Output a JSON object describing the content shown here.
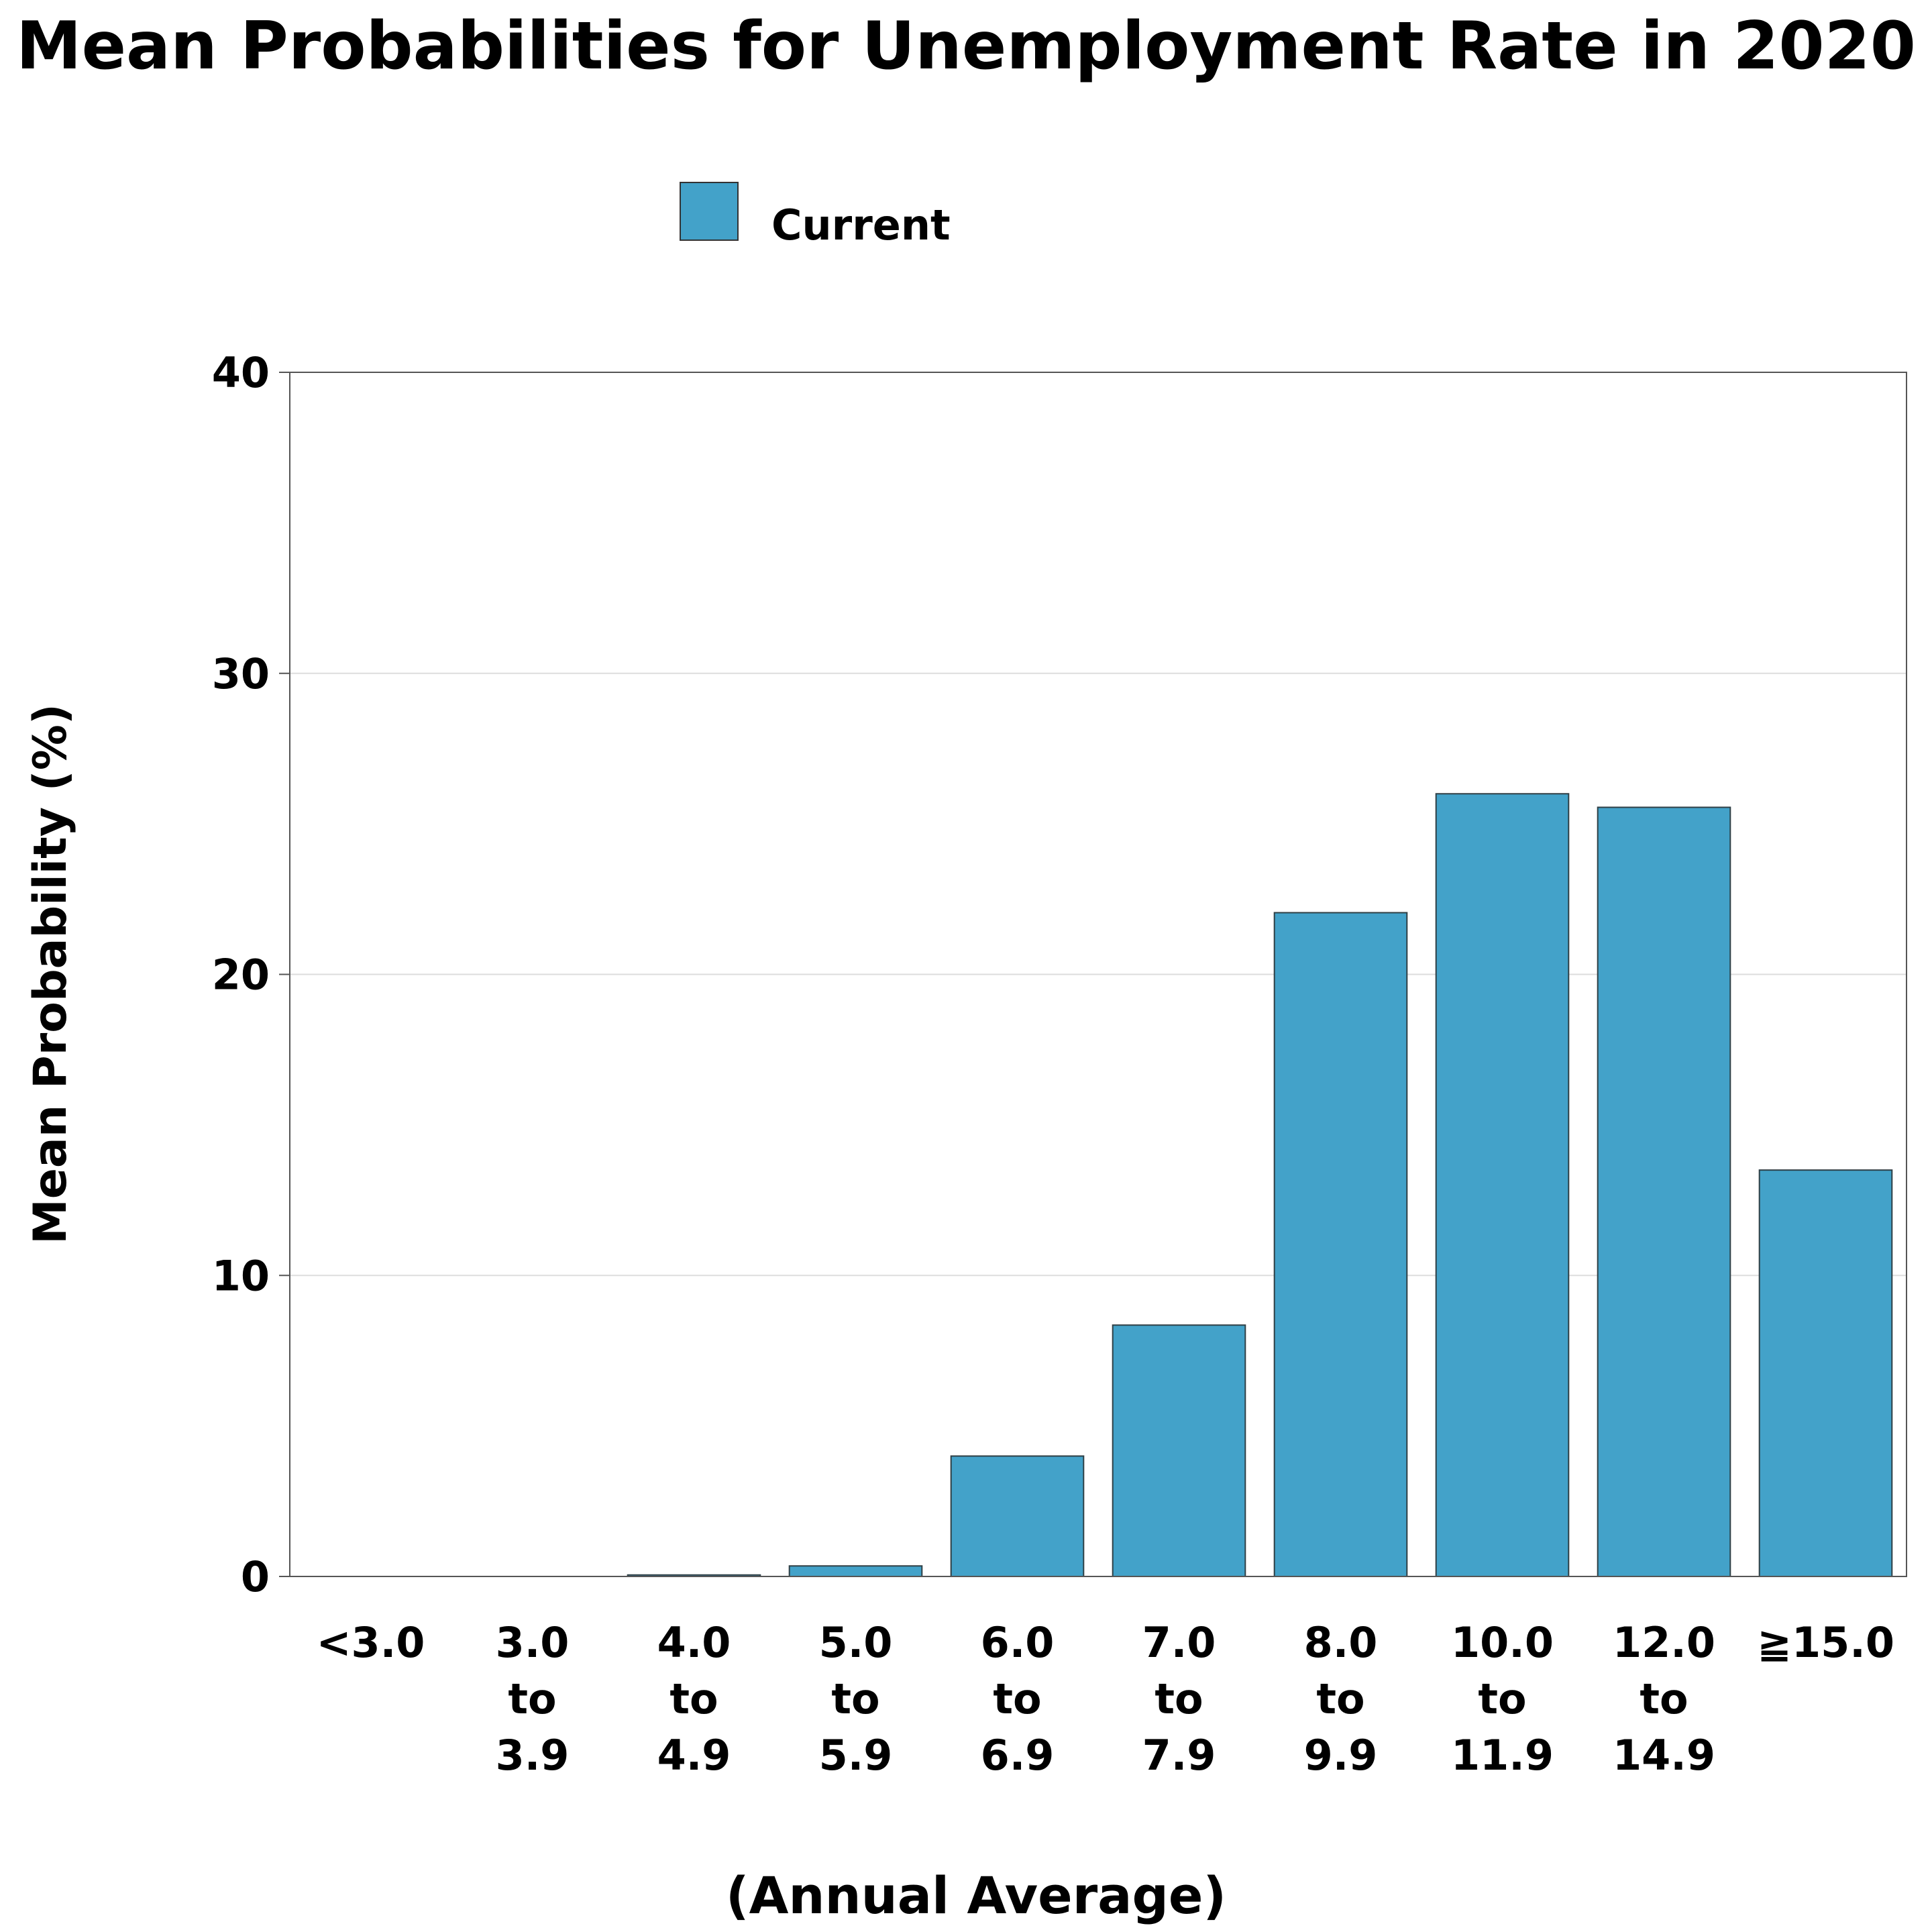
{
  "chart_data": {
    "type": "bar",
    "title": "Mean Probabilities for Unemployment Rate in 2020",
    "xlabel": "(Annual Average)",
    "ylabel": "Mean Probability (%)",
    "ylim": [
      0,
      40
    ],
    "yticks": [
      "0",
      "10",
      "20",
      "30",
      "40"
    ],
    "grid": true,
    "legend_position": "top-center",
    "categories": [
      [
        "<3.0"
      ],
      [
        "3.0",
        "to",
        "3.9"
      ],
      [
        "4.0",
        "to",
        "4.9"
      ],
      [
        "5.0",
        "to",
        "5.9"
      ],
      [
        "6.0",
        "to",
        "6.9"
      ],
      [
        "7.0",
        "to",
        "7.9"
      ],
      [
        "8.0",
        "to",
        "9.9"
      ],
      [
        "10.0",
        "to",
        "11.9"
      ],
      [
        "12.0",
        "to",
        "14.9"
      ],
      [
        "≧15.0"
      ]
    ],
    "series": [
      {
        "name": "Current",
        "color": "#43a2c9",
        "values": [
          0.0,
          0.0,
          0.05,
          0.35,
          4.0,
          8.35,
          22.05,
          26.0,
          25.55,
          13.5
        ]
      }
    ]
  }
}
